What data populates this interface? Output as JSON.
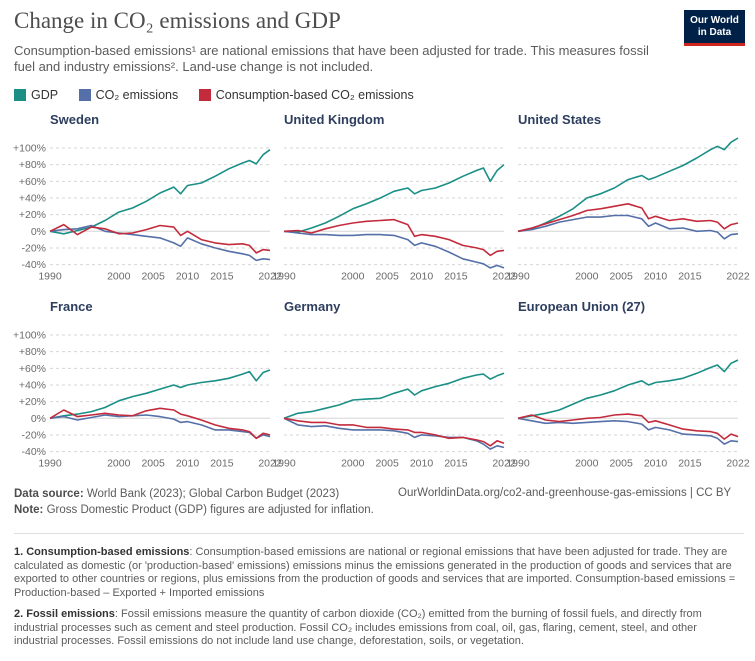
{
  "header": {
    "title": "Change in CO₂ emissions and GDP",
    "subtitle": "Consumption-based emissions¹ are national emissions that have been adjusted for trade. This measures fossil fuel and industry emissions². Land-use change is not included.",
    "logo_line1": "Our World",
    "logo_line2": "in Data"
  },
  "colors": {
    "gdp": "#1a8f86",
    "co2": "#5570a8",
    "consumption": "#c32b3d",
    "grid": "#d6d6d6",
    "axis_text": "#6b6b6b",
    "panel_title": "#2d3e5e"
  },
  "legend": [
    "GDP",
    "CO₂ emissions",
    "Consumption-based CO₂ emissions"
  ],
  "footer": {
    "source_label": "Data source:",
    "source_text": "World Bank (2023); Global Carbon Budget (2023)",
    "url": "OurWorldinData.org/co2-and-greenhouse-gas-emissions | CC BY",
    "note_label": "Note:",
    "note_text": "Gross Domestic Product (GDP) figures are adjusted for inflation."
  },
  "footnotes": [
    {
      "label": "1. Consumption-based emissions",
      "text": ": Consumption-based emissions are national or regional emissions that have been adjusted for trade. They are calculated as domestic (or 'production-based' emissions) emissions minus the emissions generated in the production of goods and services that are exported to other countries or regions, plus emissions from the production of goods and services that are imported. Consumption-based emissions = Production-based – Exported + Imported emissions"
    },
    {
      "label": "2. Fossil emissions",
      "text": ": Fossil emissions measure the quantity of carbon dioxide (CO₂) emitted from the burning of fossil fuels, and directly from industrial processes such as cement and steel production. Fossil CO₂ includes emissions from coal, oil, gas, flaring, cement, steel, and other industrial processes. Fossil emissions do not include land use change, deforestation, soils, or vegetation."
    }
  ],
  "chart_data": {
    "type": "line",
    "y_ticks": [
      "+100%",
      "+80%",
      "+60%",
      "+40%",
      "+20%",
      "0%",
      "-20%",
      "-40%"
    ],
    "x_ticks": [
      "1990",
      "2000",
      "2005",
      "2010",
      "2015",
      "2022"
    ],
    "xlim": [
      1990,
      2022
    ],
    "ylim": [
      -40,
      100
    ],
    "years": [
      1990,
      1992,
      1994,
      1996,
      1998,
      2000,
      2002,
      2004,
      2006,
      2008,
      2009,
      2010,
      2012,
      2014,
      2016,
      2018,
      2019,
      2020,
      2021,
      2022
    ],
    "panels": [
      {
        "title": "Sweden",
        "series": [
          {
            "name": "GDP",
            "values": [
              0,
              -3,
              1,
              5,
              13,
              23,
              28,
              36,
              46,
              53,
              45,
              55,
              58,
              66,
              75,
              82,
              85,
              81,
              92,
              98
            ]
          },
          {
            "name": "CO₂ emissions",
            "values": [
              0,
              2,
              3,
              7,
              0,
              -2,
              -4,
              -6,
              -8,
              -14,
              -18,
              -8,
              -15,
              -20,
              -24,
              -27,
              -29,
              -35,
              -33,
              -34
            ]
          },
          {
            "name": "Consumption-based CO₂ emissions",
            "values": [
              0,
              8,
              -4,
              5,
              3,
              -3,
              -2,
              2,
              7,
              5,
              -5,
              0,
              -10,
              -14,
              -16,
              -15,
              -17,
              -26,
              -22,
              -23
            ]
          }
        ]
      },
      {
        "title": "United Kingdom",
        "series": [
          {
            "name": "GDP",
            "values": [
              0,
              -1,
              4,
              10,
              18,
              27,
              33,
              40,
              48,
              52,
              45,
              49,
              52,
              58,
              66,
              73,
              76,
              60,
              73,
              80
            ]
          },
          {
            "name": "CO₂ emissions",
            "values": [
              0,
              -2,
              -4,
              -4,
              -5,
              -5,
              -4,
              -4,
              -5,
              -10,
              -17,
              -14,
              -18,
              -25,
              -33,
              -37,
              -39,
              -44,
              -41,
              -44
            ]
          },
          {
            "name": "Consumption-based CO₂ emissions",
            "values": [
              0,
              1,
              -2,
              3,
              7,
              10,
              12,
              13,
              14,
              8,
              -6,
              -4,
              -6,
              -10,
              -17,
              -20,
              -22,
              -29,
              -24,
              -23
            ]
          }
        ]
      },
      {
        "title": "United States",
        "series": [
          {
            "name": "GDP",
            "values": [
              0,
              3,
              10,
              18,
              27,
              40,
              45,
              52,
              62,
              67,
              62,
              65,
              72,
              79,
              88,
              98,
              102,
              98,
              107,
              112
            ]
          },
          {
            "name": "CO₂ emissions",
            "values": [
              0,
              2,
              6,
              11,
              14,
              17,
              17,
              19,
              19,
              15,
              6,
              10,
              3,
              4,
              0,
              1,
              -1,
              -9,
              -4,
              -3
            ]
          },
          {
            "name": "Consumption-based CO₂ emissions",
            "values": [
              0,
              4,
              9,
              14,
              19,
              25,
              27,
              30,
              33,
              28,
              15,
              18,
              13,
              15,
              12,
              13,
              11,
              3,
              8,
              10
            ]
          }
        ]
      },
      {
        "title": "France",
        "series": [
          {
            "name": "GDP",
            "values": [
              0,
              3,
              5,
              8,
              13,
              21,
              26,
              30,
              35,
              40,
              37,
              40,
              43,
              45,
              48,
              53,
              56,
              45,
              55,
              58
            ]
          },
          {
            "name": "CO₂ emissions",
            "values": [
              0,
              2,
              -2,
              1,
              4,
              2,
              3,
              4,
              2,
              -1,
              -5,
              -4,
              -8,
              -14,
              -14,
              -16,
              -17,
              -24,
              -20,
              -22
            ]
          },
          {
            "name": "Consumption-based CO₂ emissions",
            "values": [
              0,
              10,
              2,
              4,
              6,
              4,
              3,
              9,
              12,
              10,
              5,
              3,
              -2,
              -8,
              -12,
              -14,
              -16,
              -24,
              -18,
              -20
            ]
          }
        ]
      },
      {
        "title": "Germany",
        "series": [
          {
            "name": "GDP",
            "values": [
              0,
              6,
              8,
              12,
              16,
              22,
              23,
              24,
              30,
              35,
              28,
              33,
              38,
              42,
              48,
              52,
              53,
              47,
              51,
              54
            ]
          },
          {
            "name": "CO₂ emissions",
            "values": [
              0,
              -8,
              -10,
              -9,
              -12,
              -14,
              -14,
              -14,
              -15,
              -18,
              -23,
              -20,
              -21,
              -23,
              -23,
              -27,
              -31,
              -37,
              -33,
              -35
            ]
          },
          {
            "name": "Consumption-based CO₂ emissions",
            "values": [
              0,
              -3,
              -5,
              -5,
              -8,
              -8,
              -11,
              -11,
              -13,
              -14,
              -17,
              -17,
              -20,
              -24,
              -23,
              -26,
              -28,
              -33,
              -27,
              -30
            ]
          }
        ]
      },
      {
        "title": "European Union (27)",
        "series": [
          {
            "name": "GDP",
            "values": [
              0,
              3,
              6,
              10,
              17,
              24,
              28,
              33,
              40,
              45,
              40,
              43,
              45,
              48,
              54,
              61,
              64,
              56,
              66,
              70
            ]
          },
          {
            "name": "CO₂ emissions",
            "values": [
              0,
              -3,
              -6,
              -5,
              -6,
              -5,
              -4,
              -3,
              -4,
              -7,
              -14,
              -11,
              -14,
              -19,
              -20,
              -21,
              -24,
              -31,
              -27,
              -28
            ]
          },
          {
            "name": "Consumption-based CO₂ emissions",
            "values": [
              0,
              4,
              -2,
              -4,
              -2,
              0,
              1,
              4,
              5,
              3,
              -5,
              -3,
              -8,
              -13,
              -15,
              -16,
              -18,
              -25,
              -19,
              -22
            ]
          }
        ]
      }
    ]
  }
}
